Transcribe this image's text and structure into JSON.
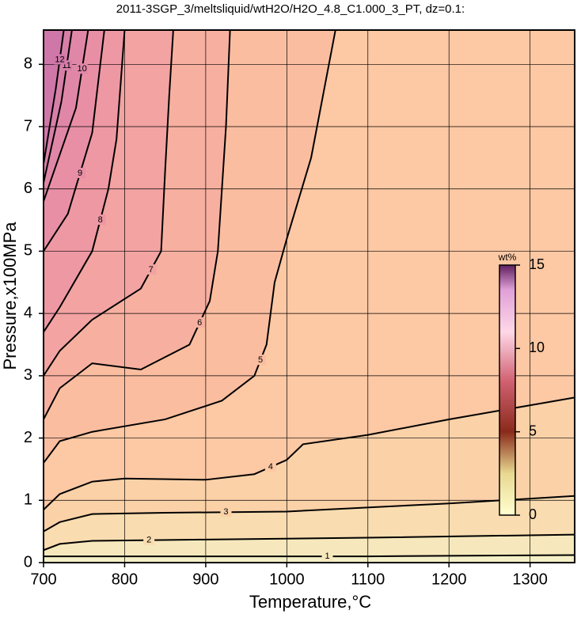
{
  "chart_data": {
    "type": "contour",
    "title": "2011-3SGP_3/meltsliquid/wtH2O/H2O_4.8_C1.000_3_PT, dz=0.1:",
    "x_label": "Temperature,°C",
    "y_label": "Pressure,x100MPa",
    "xlim": [
      700,
      1355
    ],
    "ylim": [
      0,
      8.55
    ],
    "xticks": [
      700,
      800,
      900,
      1000,
      1100,
      1200,
      1300
    ],
    "yticks": [
      0,
      1,
      2,
      3,
      4,
      5,
      6,
      7,
      8
    ],
    "grid": true,
    "background_color": "#f4efc6",
    "contours": [
      {
        "level": 1,
        "color": "#f6e8bc",
        "x": [
          700,
          800,
          900,
          1000,
          1100,
          1200,
          1355
        ],
        "y": [
          0.1,
          0.1,
          0.1,
          0.1,
          0.1,
          0.11,
          0.12
        ]
      },
      {
        "level": 2,
        "color": "#f9dcb0",
        "x": [
          700,
          720,
          760,
          900,
          1100,
          1355
        ],
        "y": [
          0.2,
          0.3,
          0.35,
          0.37,
          0.4,
          0.45
        ]
      },
      {
        "level": 3,
        "color": "#fbd1a8",
        "x": [
          700,
          720,
          760,
          850,
          1000,
          1200,
          1355
        ],
        "y": [
          0.5,
          0.65,
          0.78,
          0.8,
          0.82,
          0.95,
          1.07
        ]
      },
      {
        "level": 4,
        "color": "#fdc8a4",
        "x": [
          700,
          720,
          760,
          800,
          900,
          960,
          1000,
          1020,
          1100,
          1200,
          1355
        ],
        "y": [
          0.85,
          1.1,
          1.3,
          1.35,
          1.33,
          1.42,
          1.65,
          1.9,
          2.05,
          2.3,
          2.65
        ]
      },
      {
        "level": 5,
        "color": "#fbbda0",
        "x": [
          700,
          720,
          760,
          850,
          920,
          960,
          975,
          985,
          1000,
          1030,
          1060
        ],
        "y": [
          1.6,
          1.95,
          2.1,
          2.3,
          2.6,
          3.0,
          3.5,
          4.5,
          5.2,
          6.5,
          8.55
        ]
      },
      {
        "level": 6,
        "color": "#f7b0a0",
        "x": [
          700,
          720,
          760,
          820,
          880,
          905,
          915,
          920,
          925,
          930
        ],
        "y": [
          2.3,
          2.8,
          3.2,
          3.1,
          3.5,
          4.2,
          5.0,
          6.0,
          7.0,
          8.55
        ]
      },
      {
        "level": 7,
        "color": "#f2a3a2",
        "x": [
          700,
          720,
          760,
          820,
          845,
          850,
          855,
          860
        ],
        "y": [
          3.0,
          3.4,
          3.9,
          4.4,
          5.0,
          6.3,
          7.5,
          8.55
        ]
      },
      {
        "level": 8,
        "color": "#ee98a3",
        "x": [
          700,
          720,
          760,
          780,
          790,
          800
        ],
        "y": [
          3.7,
          4.1,
          5.0,
          6.0,
          6.8,
          8.55
        ]
      },
      {
        "level": 9,
        "color": "#e88fa6",
        "x": [
          700,
          730,
          760,
          775
        ],
        "y": [
          5.0,
          5.6,
          6.9,
          8.55
        ]
      },
      {
        "level": 10,
        "color": "#e087a8",
        "x": [
          700,
          740,
          755
        ],
        "y": [
          5.8,
          7.3,
          8.55
        ]
      },
      {
        "level": 11,
        "color": "#d87fa8",
        "x": [
          700,
          722,
          735
        ],
        "y": [
          6.1,
          7.4,
          8.55
        ]
      },
      {
        "level": 12,
        "color": "#cf77a8",
        "x": [
          700,
          715,
          725
        ],
        "y": [
          6.4,
          7.6,
          8.55
        ]
      }
    ],
    "colorbar": {
      "label": "wt%",
      "clim": [
        0,
        15
      ],
      "ticks": [
        0,
        5,
        10,
        15
      ],
      "stops": [
        {
          "value": 0,
          "color": "#ffffd0"
        },
        {
          "value": 2.5,
          "color": "#e8d890"
        },
        {
          "value": 5,
          "color": "#8a2a1a"
        },
        {
          "value": 8,
          "color": "#d06070"
        },
        {
          "value": 11,
          "color": "#ffd8e8"
        },
        {
          "value": 13.5,
          "color": "#e0a0d8"
        },
        {
          "value": 15,
          "color": "#602060"
        }
      ]
    }
  }
}
